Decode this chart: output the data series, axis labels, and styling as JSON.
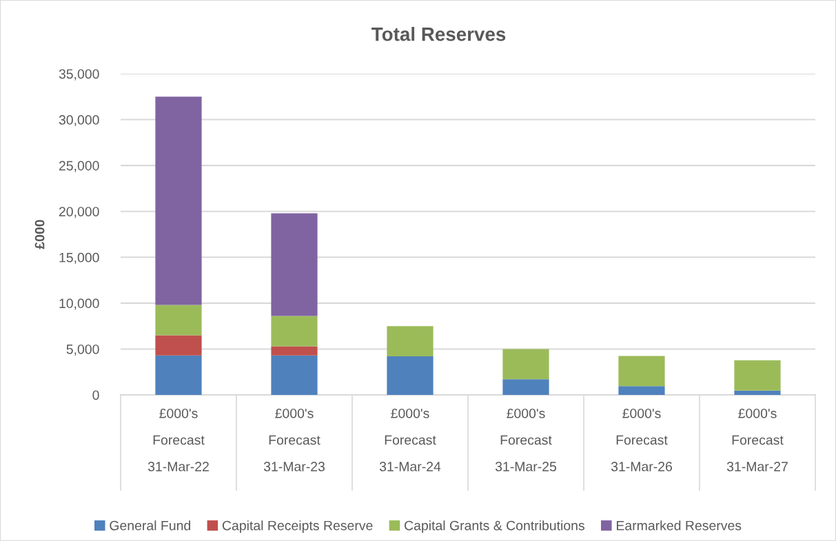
{
  "chart_data": {
    "type": "bar",
    "title": "Total Reserves",
    "ylabel": "£000",
    "categories": [
      "£000's\nForecast\n31-Mar-22",
      "£000's\nForecast\n31-Mar-23",
      "£000's\nForecast\n31-Mar-24",
      "£000's\nForecast\n31-Mar-25",
      "£000's\nForecast\n31-Mar-26",
      "£000's\nForecast\n31-Mar-27"
    ],
    "stacked": true,
    "series": [
      {
        "name": "General Fund",
        "color": "#4f81bd",
        "values": [
          4300,
          4300,
          4200,
          1700,
          950,
          470
        ]
      },
      {
        "name": "Capital Receipts Reserve",
        "color": "#c0504d",
        "values": [
          2200,
          1000,
          null,
          null,
          null,
          null
        ]
      },
      {
        "name": "Capital Grants & Contributions",
        "color": "#9bbb59",
        "values": [
          3300,
          3300,
          3300,
          3300,
          3300,
          3300
        ]
      },
      {
        "name": "Earmarked Reserves",
        "color": "#8064a2",
        "values": [
          22700,
          11200,
          null,
          null,
          null,
          null
        ]
      }
    ],
    "ylim": [
      0,
      35000
    ],
    "yticks": [
      0,
      {
        "value": 5000,
        "label": "5,000"
      },
      {
        "value": 10000,
        "label": "10,000"
      },
      {
        "value": 15000,
        "label": "15,000"
      },
      {
        "value": 20000,
        "label": "20,000"
      },
      {
        "value": 25000,
        "label": "25,000"
      },
      {
        "value": 30000,
        "label": "30,000"
      },
      {
        "value": 35000,
        "label": "35,000"
      }
    ],
    "grid": "y",
    "legend": "bottom"
  }
}
